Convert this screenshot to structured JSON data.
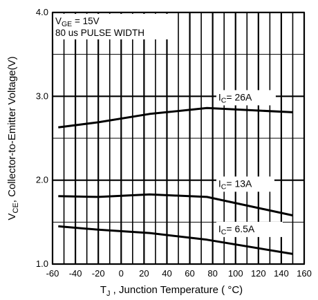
{
  "chart_data": {
    "type": "line",
    "title": "",
    "xlabel": {
      "main": "T",
      "sub": "J",
      "rest": " , Junction Temperature ( °C)"
    },
    "ylabel": {
      "main": "V",
      "sub": "CE",
      "rest": ", Collector-to-Emitter Voltage(V)"
    },
    "xlim": [
      -60,
      160
    ],
    "ylim": [
      1.0,
      4.0
    ],
    "x_ticks": [
      -60,
      -40,
      -20,
      0,
      20,
      40,
      60,
      80,
      100,
      120,
      140,
      160
    ],
    "y_tick_labels": [
      {
        "value": 1.0,
        "label": "1.0"
      },
      {
        "value": 2.0,
        "label": "2.0"
      },
      {
        "value": 3.0,
        "label": "3.0"
      },
      {
        "value": 4.0,
        "label": "4.0"
      }
    ],
    "grid": true,
    "conditions": {
      "line1": {
        "main": "V",
        "sub": "GE",
        "rest": " = 15V"
      },
      "line2": "80 us PULSE WIDTH"
    },
    "series": [
      {
        "name": {
          "main": "I",
          "sub": "C",
          "rest": "=  26A"
        },
        "x": [
          -55,
          -20,
          25,
          75,
          150
        ],
        "y": [
          2.63,
          2.69,
          2.79,
          2.86,
          2.81
        ]
      },
      {
        "name": {
          "main": "I",
          "sub": "C",
          "rest": "=  13A"
        },
        "x": [
          -55,
          -20,
          25,
          75,
          150
        ],
        "y": [
          1.81,
          1.8,
          1.83,
          1.8,
          1.58
        ]
      },
      {
        "name": {
          "main": "I",
          "sub": "C",
          "rest": "=  6.5A"
        },
        "x": [
          -55,
          -20,
          25,
          75,
          150
        ],
        "y": [
          1.45,
          1.41,
          1.37,
          1.29,
          1.12
        ]
      }
    ]
  }
}
